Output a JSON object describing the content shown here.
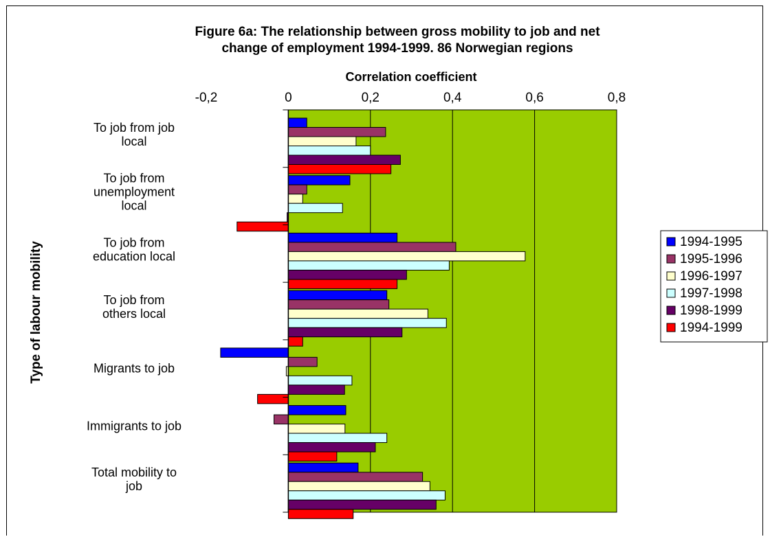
{
  "chart_data": {
    "type": "bar",
    "orientation": "horizontal",
    "title_line1": "Figure 6a: The relationship between gross mobility to job and net",
    "title_line2": "change of employment 1994-1999. 86 Norwegian regions",
    "xlabel": "Correlation coefficient",
    "ylabel": "Type of labour mobility",
    "xlim": [
      -0.2,
      0.8
    ],
    "xticks": [
      "-0,2",
      "0",
      "0,2",
      "0,4",
      "0,6",
      "0,8"
    ],
    "grid": true,
    "legend_position": "right",
    "plot_background": "#99CC00",
    "categories": [
      [
        "To job from job",
        "local"
      ],
      [
        "To job from",
        "unemployment",
        "local"
      ],
      [
        "To job from",
        "education local"
      ],
      [
        "To job from",
        "others local"
      ],
      [
        "Migrants to job"
      ],
      [
        "Immigrants to job"
      ],
      [
        "Total mobility to",
        "job"
      ]
    ],
    "series": [
      {
        "name": "1994-1995",
        "color": "#0000FF",
        "values": [
          0.045,
          0.15,
          0.265,
          0.24,
          -0.165,
          0.14,
          0.17
        ]
      },
      {
        "name": "1995-1996",
        "color": "#993366",
        "values": [
          0.237,
          0.045,
          0.408,
          0.245,
          0.07,
          -0.035,
          0.327
        ]
      },
      {
        "name": "1996-1997",
        "color": "#FFFFCC",
        "values": [
          0.165,
          0.035,
          0.577,
          0.34,
          -0.005,
          0.138,
          0.345
        ]
      },
      {
        "name": "1997-1998",
        "color": "#CCFFFF",
        "values": [
          0.2,
          0.132,
          0.392,
          0.385,
          0.155,
          0.24,
          0.382
        ]
      },
      {
        "name": "1998-1999",
        "color": "#660066",
        "values": [
          0.273,
          -0.003,
          0.288,
          0.277,
          0.137,
          0.212,
          0.36
        ]
      },
      {
        "name": "1994-1999",
        "color": "#FF0000",
        "values": [
          0.25,
          -0.125,
          0.265,
          0.035,
          -0.075,
          0.118,
          0.158
        ]
      }
    ]
  }
}
